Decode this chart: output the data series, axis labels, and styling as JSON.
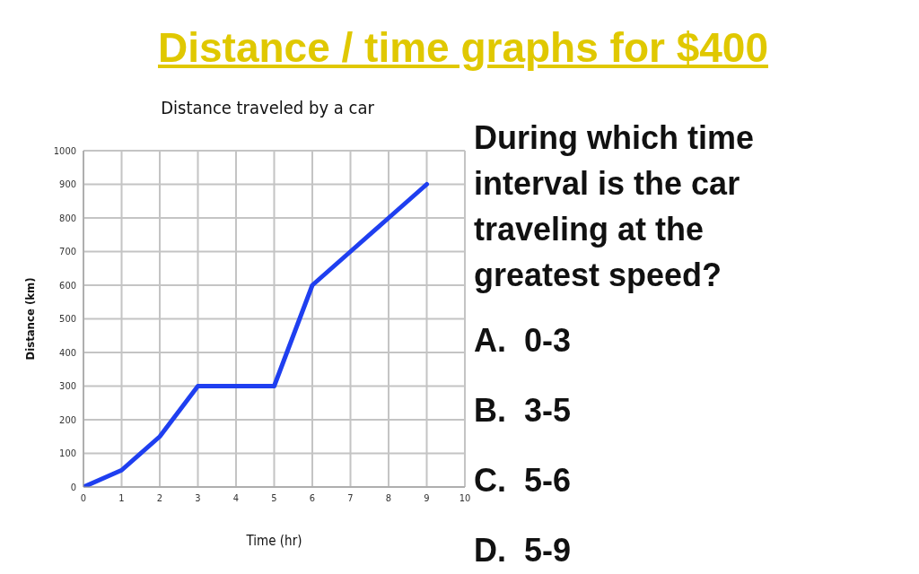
{
  "chart_data": {
    "type": "line",
    "title": "Distance / time graphs for $400",
    "subtitle": "Distance traveled by a car",
    "xlabel": "Time (hr)",
    "ylabel": "Distance (km)",
    "x": [
      0,
      1,
      2,
      3,
      5,
      6,
      7,
      8,
      9
    ],
    "series": [
      {
        "color": "#1f3ff0",
        "values": [
          0,
          50,
          150,
          300,
          300,
          600,
          700,
          800,
          900
        ]
      }
    ],
    "xlim": [
      0,
      10
    ],
    "xticks": [
      0,
      1,
      2,
      3,
      4,
      5,
      6,
      7,
      8,
      9,
      10
    ],
    "ylim": [
      0,
      1000
    ],
    "yticks": [
      0,
      100,
      200,
      300,
      400,
      500,
      600,
      700,
      800,
      900,
      1000
    ],
    "grid": true,
    "marker": "none",
    "line_style": "solid",
    "legend": false,
    "annotations": [
      "During which time interval is the car traveling at the greatest speed?",
      "A.  0-3",
      "B.  3-5",
      "C.  5-6",
      "D.  5-9"
    ]
  }
}
